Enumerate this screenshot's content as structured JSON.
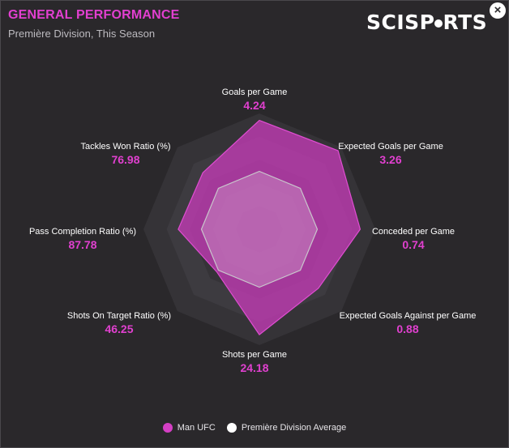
{
  "header": {
    "title": "GENERAL PERFORMANCE",
    "subtitle": "Première Division, This Season",
    "brand": "SCISPORTS",
    "close_label": "×"
  },
  "chart_data": {
    "type": "radar",
    "axes": [
      {
        "name": "Goals per Game",
        "value": "4.24"
      },
      {
        "name": "Expected Goals per Game",
        "value": "3.26"
      },
      {
        "name": "Conceded per Game",
        "value": "0.74"
      },
      {
        "name": "Expected Goals Against per Game",
        "value": "0.88"
      },
      {
        "name": "Shots per Game",
        "value": "24.18"
      },
      {
        "name": "Shots On Target Ratio (%)",
        "value": "46.25"
      },
      {
        "name": "Pass Completion Ratio (%)",
        "value": "87.78"
      },
      {
        "name": "Tackles Won Ratio (%)",
        "value": "76.98"
      }
    ],
    "series": [
      {
        "name": "Man UFC",
        "color": "#d43fc4",
        "levels": [
          0.94,
          0.96,
          0.87,
          0.72,
          0.91,
          0.52,
          0.7,
          0.69
        ]
      },
      {
        "name": "Première Division Average",
        "color": "#ffffff",
        "levels": [
          0.5,
          0.5,
          0.5,
          0.5,
          0.5,
          0.5,
          0.5,
          0.5
        ]
      }
    ],
    "rings": 5,
    "legend_position": "bottom-center"
  }
}
